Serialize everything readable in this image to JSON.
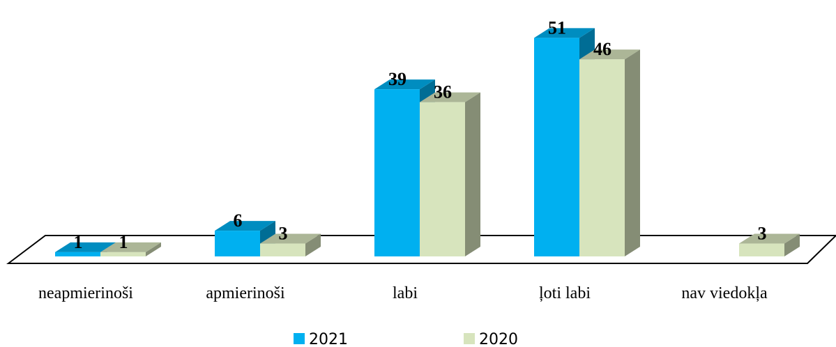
{
  "chart_data": {
    "type": "bar3d",
    "categories": [
      "neapmierinoši",
      "apmierinoši",
      "labi",
      "ļoti labi",
      "nav viedokļa"
    ],
    "series": [
      {
        "name": "2021",
        "color": "#00b0f0",
        "values": [
          1,
          6,
          39,
          51,
          null
        ]
      },
      {
        "name": "2020",
        "color": "#d7e4bd",
        "values": [
          1,
          3,
          36,
          46,
          3
        ]
      }
    ],
    "legend": "bottom"
  }
}
